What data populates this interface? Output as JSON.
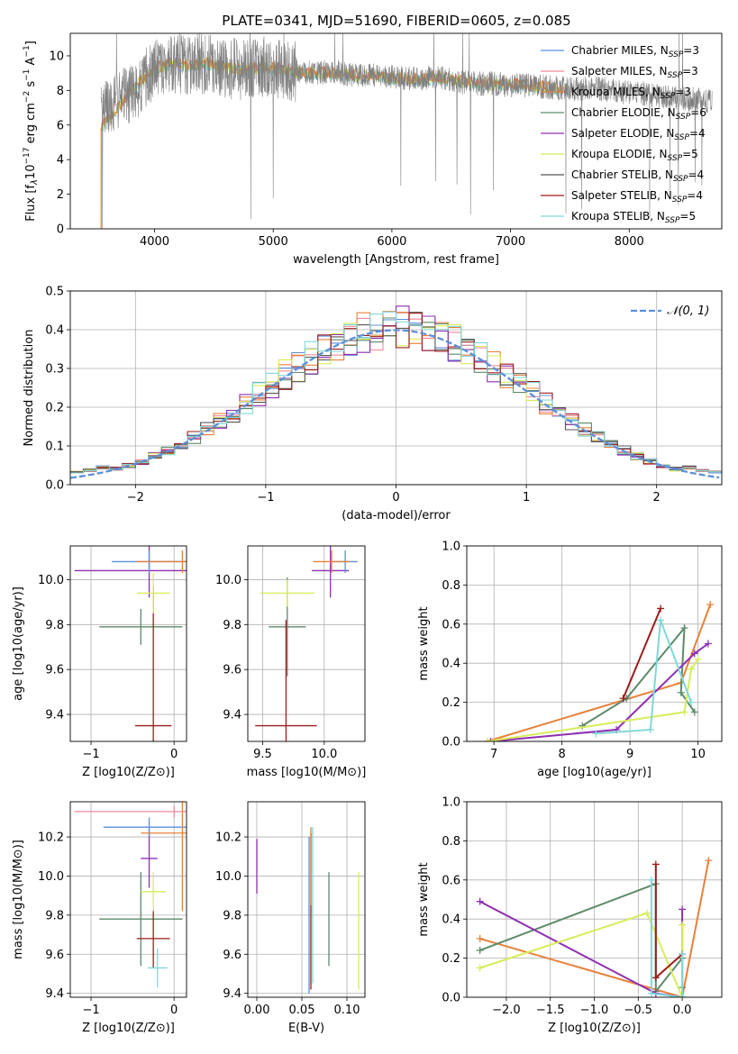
{
  "figure_title": "PLATE=0341, MJD=51690, FIBERID=0605, z=0.085",
  "legend_entries": [
    {
      "name": "Chabrier MILES",
      "nssp": "3",
      "color": "#5b8fd9"
    },
    {
      "name": "Salpeter MILES",
      "nssp": "3",
      "color": "#f08a9a"
    },
    {
      "name": "Kroupa MILES",
      "nssp": "3",
      "color": "#e8803a"
    },
    {
      "name": "Chabrier ELODIE",
      "nssp": "6",
      "color": "#5e8a6a"
    },
    {
      "name": "Salpeter ELODIE",
      "nssp": "4",
      "color": "#8e2fb0"
    },
    {
      "name": "Kroupa ELODIE",
      "nssp": "5",
      "color": "#d8ec5a"
    },
    {
      "name": "Chabrier STELIB",
      "nssp": "4",
      "color": "#555555"
    },
    {
      "name": "Salpeter STELIB",
      "nssp": "4",
      "color": "#9c1c1c"
    },
    {
      "name": "Kroupa STELIB",
      "nssp": "5",
      "color": "#80d8d8"
    }
  ],
  "chart_data": [
    {
      "id": "spectrum",
      "type": "line",
      "xlabel": "wavelength [Angstrom, rest frame]",
      "ylabel": "Flux [f_λ 10^-17 erg cm^-2 s^-1 A^-1]",
      "xlim": [
        3290,
        8780
      ],
      "ylim": [
        0,
        11.3
      ],
      "xticks": [
        4000,
        5000,
        6000,
        7000,
        8000
      ],
      "yticks": [
        0,
        2,
        4,
        6,
        8,
        10
      ],
      "grid": false,
      "legend_position": "right",
      "data_color": "#808080",
      "data_x": [
        3550,
        3700,
        3850,
        4000,
        4150,
        4300,
        4450,
        4600,
        4750,
        4900,
        5050,
        5200,
        5350,
        5500,
        5650,
        5800,
        5950,
        6100,
        6250,
        6400,
        6550,
        6700,
        6850,
        7000,
        7150,
        7300,
        7450,
        7600,
        7750,
        7900,
        8050,
        8200,
        8350,
        8500,
        8700
      ],
      "data_y": [
        6.5,
        7.4,
        8.1,
        9.2,
        9.6,
        9.5,
        9.6,
        9.3,
        9.2,
        9.4,
        9.3,
        9.1,
        9.0,
        9.1,
        8.9,
        8.9,
        8.8,
        8.7,
        8.7,
        8.8,
        8.5,
        8.4,
        8.4,
        8.3,
        8.3,
        8.2,
        8.1,
        8.1,
        8.1,
        7.9,
        7.9,
        7.7,
        7.6,
        7.5,
        7.4
      ],
      "data_noise": 1.2,
      "model_x": [
        3550,
        3700,
        3850,
        4000,
        4150,
        4300,
        4450,
        4600,
        4750,
        4900,
        5050,
        5200,
        5350,
        5500,
        5650,
        5800,
        5950,
        6100,
        6250,
        6400,
        6550,
        6700,
        6850,
        7000,
        7150,
        7300,
        7450
      ],
      "model_y": [
        5.8,
        7.0,
        8.3,
        9.2,
        9.5,
        9.4,
        9.5,
        9.3,
        9.1,
        9.3,
        9.2,
        9.0,
        8.9,
        9.0,
        8.8,
        8.8,
        8.7,
        8.6,
        8.6,
        8.7,
        8.5,
        8.4,
        8.3,
        8.3,
        8.2,
        8.1,
        8.0
      ],
      "model_colors": [
        "#80d8d8",
        "#d8ec5a",
        "#e8803a"
      ]
    },
    {
      "id": "residuals",
      "type": "line",
      "xlabel": "(data-model)/error",
      "ylabel": "Normed distribution",
      "xlim": [
        -2.5,
        2.5
      ],
      "ylim": [
        0,
        0.5
      ],
      "xticks": [
        -2,
        -1,
        0,
        1,
        2
      ],
      "yticks": [
        0.0,
        0.1,
        0.2,
        0.3,
        0.4,
        0.5
      ],
      "grid": true,
      "legend": "𝒩(0, 1)",
      "legend_position": "top-right",
      "normal_color": "#5b8fd9",
      "bin_width": 0.1
    },
    {
      "id": "age-vs-Z",
      "type": "scatter",
      "xlabel": "Z [log10(Z/Z⊙)]",
      "ylabel": "age [log10(age/yr)]",
      "xlim": [
        -1.25,
        0.15
      ],
      "ylim": [
        9.28,
        10.15
      ],
      "xticks": [
        -1,
        0
      ],
      "yticks": [
        9.4,
        9.6,
        9.8,
        10.0
      ],
      "grid": true,
      "points": [
        {
          "x": -0.4,
          "y": 9.79,
          "xerr": 0.5,
          "yerr": 0.08,
          "color": "#5e8a6a"
        },
        {
          "x": -0.25,
          "y": 9.35,
          "xerr": 0.22,
          "yerr": 0.62,
          "color": "#9c1c1c"
        },
        {
          "x": -0.3,
          "y": 10.04,
          "xerr": 0.9,
          "yerr": 0.12,
          "color": "#8e2fb0"
        },
        {
          "x": -0.25,
          "y": 9.94,
          "xerr": 0.2,
          "yerr": 0.09,
          "color": "#d8ec5a"
        },
        {
          "x": -0.3,
          "y": 10.08,
          "xerr": 0.45,
          "yerr": 0.05,
          "color": "#5b8fd9"
        },
        {
          "x": 0.1,
          "y": 10.08,
          "xerr": 0.55,
          "yerr": 0.05,
          "color": "#e8803a"
        }
      ]
    },
    {
      "id": "age-vs-mass",
      "type": "scatter",
      "xlabel": "mass [log10(M/M⊙)]",
      "ylabel": "",
      "xlim": [
        9.38,
        10.33
      ],
      "ylim": [
        9.28,
        10.15
      ],
      "xticks": [
        9.5,
        10.0
      ],
      "yticks": [
        9.4,
        9.6,
        9.8,
        10.0
      ],
      "grid": true,
      "points": [
        {
          "x": 9.7,
          "y": 9.79,
          "xerr": 0.15,
          "yerr": 0.22,
          "color": "#5e8a6a"
        },
        {
          "x": 9.69,
          "y": 9.35,
          "xerr": 0.25,
          "yerr": 0.47,
          "color": "#9c1c1c"
        },
        {
          "x": 10.05,
          "y": 10.04,
          "xerr": 0.15,
          "yerr": 0.12,
          "color": "#8e2fb0"
        },
        {
          "x": 9.7,
          "y": 9.94,
          "xerr": 0.22,
          "yerr": 0.06,
          "color": "#d8ec5a"
        },
        {
          "x": 10.17,
          "y": 10.08,
          "xerr": 0.1,
          "yerr": 0.05,
          "color": "#5b8fd9"
        },
        {
          "x": 10.06,
          "y": 10.08,
          "xerr": 0.15,
          "yerr": 0.05,
          "color": "#e8803a"
        }
      ]
    },
    {
      "id": "weight-vs-age",
      "type": "line",
      "xlabel": "age [log10(age/yr)]",
      "ylabel": "mass weight",
      "xlim": [
        6.6,
        10.35
      ],
      "ylim": [
        0,
        1.0
      ],
      "xticks": [
        7,
        8,
        9,
        10
      ],
      "yticks": [
        0.0,
        0.2,
        0.4,
        0.6,
        0.8,
        1.0
      ],
      "grid": true,
      "series": [
        {
          "color": "#e8803a",
          "x": [
            6.9,
            9.75,
            10.18
          ],
          "y": [
            0.0,
            0.3,
            0.7
          ]
        },
        {
          "color": "#5e8a6a",
          "x": [
            8.3,
            8.95,
            9.8,
            9.75,
            9.95
          ],
          "y": [
            0.08,
            0.22,
            0.58,
            0.25,
            0.15
          ]
        },
        {
          "color": "#8e2fb0",
          "x": [
            6.95,
            8.8,
            9.95,
            10.15
          ],
          "y": [
            0.0,
            0.06,
            0.45,
            0.5
          ]
        },
        {
          "color": "#d8ec5a",
          "x": [
            6.9,
            9.8,
            9.9,
            10.0
          ],
          "y": [
            0.0,
            0.15,
            0.37,
            0.42
          ]
        },
        {
          "color": "#9c1c1c",
          "x": [
            8.9,
            9.45
          ],
          "y": [
            0.22,
            0.68
          ]
        },
        {
          "color": "#80d8d8",
          "x": [
            8.5,
            9.3,
            9.45,
            9.9
          ],
          "y": [
            0.04,
            0.06,
            0.62,
            0.2
          ]
        }
      ]
    },
    {
      "id": "mass-vs-Z",
      "type": "scatter",
      "xlabel": "Z [log10(Z/Z⊙)]",
      "ylabel": "mass [log10(M/M⊙)]",
      "xlim": [
        -1.25,
        0.15
      ],
      "ylim": [
        9.38,
        10.38
      ],
      "xticks": [
        -1,
        0
      ],
      "yticks": [
        9.4,
        9.6,
        9.8,
        10.0,
        10.2
      ],
      "grid": true,
      "points": [
        {
          "x": -0.4,
          "y": 9.78,
          "xerr": 0.5,
          "yerr": 0.24,
          "color": "#5e8a6a"
        },
        {
          "x": -0.25,
          "y": 9.68,
          "xerr": 0.2,
          "yerr": 0.15,
          "color": "#9c1c1c"
        },
        {
          "x": -0.3,
          "y": 10.09,
          "xerr": 0.1,
          "yerr": 0.15,
          "color": "#8e2fb0"
        },
        {
          "x": -0.25,
          "y": 9.92,
          "xerr": 0.15,
          "yerr": 0.1,
          "color": "#d8ec5a"
        },
        {
          "x": -0.2,
          "y": 9.53,
          "xerr": 0.12,
          "yerr": 0.1,
          "color": "#80d8d8"
        },
        {
          "x": -0.3,
          "y": 10.25,
          "xerr": 0.55,
          "yerr": 0.05,
          "color": "#5b8fd9"
        },
        {
          "x": 0.1,
          "y": 10.22,
          "xerr": 0.5,
          "yerr": 0.4,
          "color": "#e8803a"
        },
        {
          "x": 0.0,
          "y": 10.33,
          "xerr": 1.2,
          "yerr": 0.03,
          "color": "#f08a9a"
        }
      ]
    },
    {
      "id": "mass-vs-ebv",
      "type": "scatter",
      "xlabel": "E(B-V)",
      "ylabel": "",
      "xlim": [
        -0.01,
        0.12
      ],
      "ylim": [
        9.38,
        10.38
      ],
      "xticks": [
        0.0,
        0.05,
        0.1
      ],
      "yticks": [
        9.4,
        9.6,
        9.8,
        10.0,
        10.2
      ],
      "grid": true,
      "points": [
        {
          "x": 0.0,
          "y": 10.05,
          "yerr": 0.14,
          "color": "#8e2fb0"
        },
        {
          "x": 0.06,
          "y": 9.82,
          "yerr": 0.4,
          "color": "#9c1c1c"
        },
        {
          "x": 0.058,
          "y": 9.8,
          "yerr": 0.4,
          "color": "#5b8fd9"
        },
        {
          "x": 0.062,
          "y": 9.85,
          "yerr": 0.4,
          "color": "#80d8d8"
        },
        {
          "x": 0.06,
          "y": 10.05,
          "yerr": 0.2,
          "color": "#e8803a"
        },
        {
          "x": 0.08,
          "y": 9.78,
          "yerr": 0.24,
          "color": "#5e8a6a"
        },
        {
          "x": 0.113,
          "y": 9.72,
          "yerr": 0.3,
          "color": "#d8ec5a"
        }
      ]
    },
    {
      "id": "weight-vs-Z",
      "type": "line",
      "xlabel": "Z [log10(Z/Z⊙)]",
      "ylabel": "mass weight",
      "xlim": [
        -2.45,
        0.45
      ],
      "ylim": [
        0,
        1.0
      ],
      "xticks": [
        -2.0,
        -1.5,
        -1.0,
        -0.5,
        0.0
      ],
      "yticks": [
        0.0,
        0.2,
        0.4,
        0.6,
        0.8,
        1.0
      ],
      "grid": true,
      "series": [
        {
          "color": "#e8803a",
          "x": [
            -2.3,
            0.0,
            0.3
          ],
          "y": [
            0.3,
            0.0,
            0.7
          ]
        },
        {
          "color": "#5e8a6a",
          "x": [
            -2.3,
            -0.3,
            -0.3,
            0.0,
            0.0
          ],
          "y": [
            0.24,
            0.58,
            0.03,
            0.2,
            0.05
          ]
        },
        {
          "color": "#8e2fb0",
          "x": [
            -2.3,
            -0.3,
            0.0,
            0.0
          ],
          "y": [
            0.49,
            0.02,
            0.0,
            0.45
          ]
        },
        {
          "color": "#d8ec5a",
          "x": [
            -2.3,
            -0.4,
            0.0,
            0.0
          ],
          "y": [
            0.15,
            0.43,
            0.0,
            0.37
          ]
        },
        {
          "color": "#9c1c1c",
          "x": [
            -0.3,
            -0.3,
            0.0
          ],
          "y": [
            0.68,
            0.1,
            0.22
          ]
        },
        {
          "color": "#80d8d8",
          "x": [
            -0.35,
            -0.35,
            0.0,
            0.0
          ],
          "y": [
            0.6,
            0.02,
            0.0,
            0.22
          ]
        }
      ]
    }
  ]
}
